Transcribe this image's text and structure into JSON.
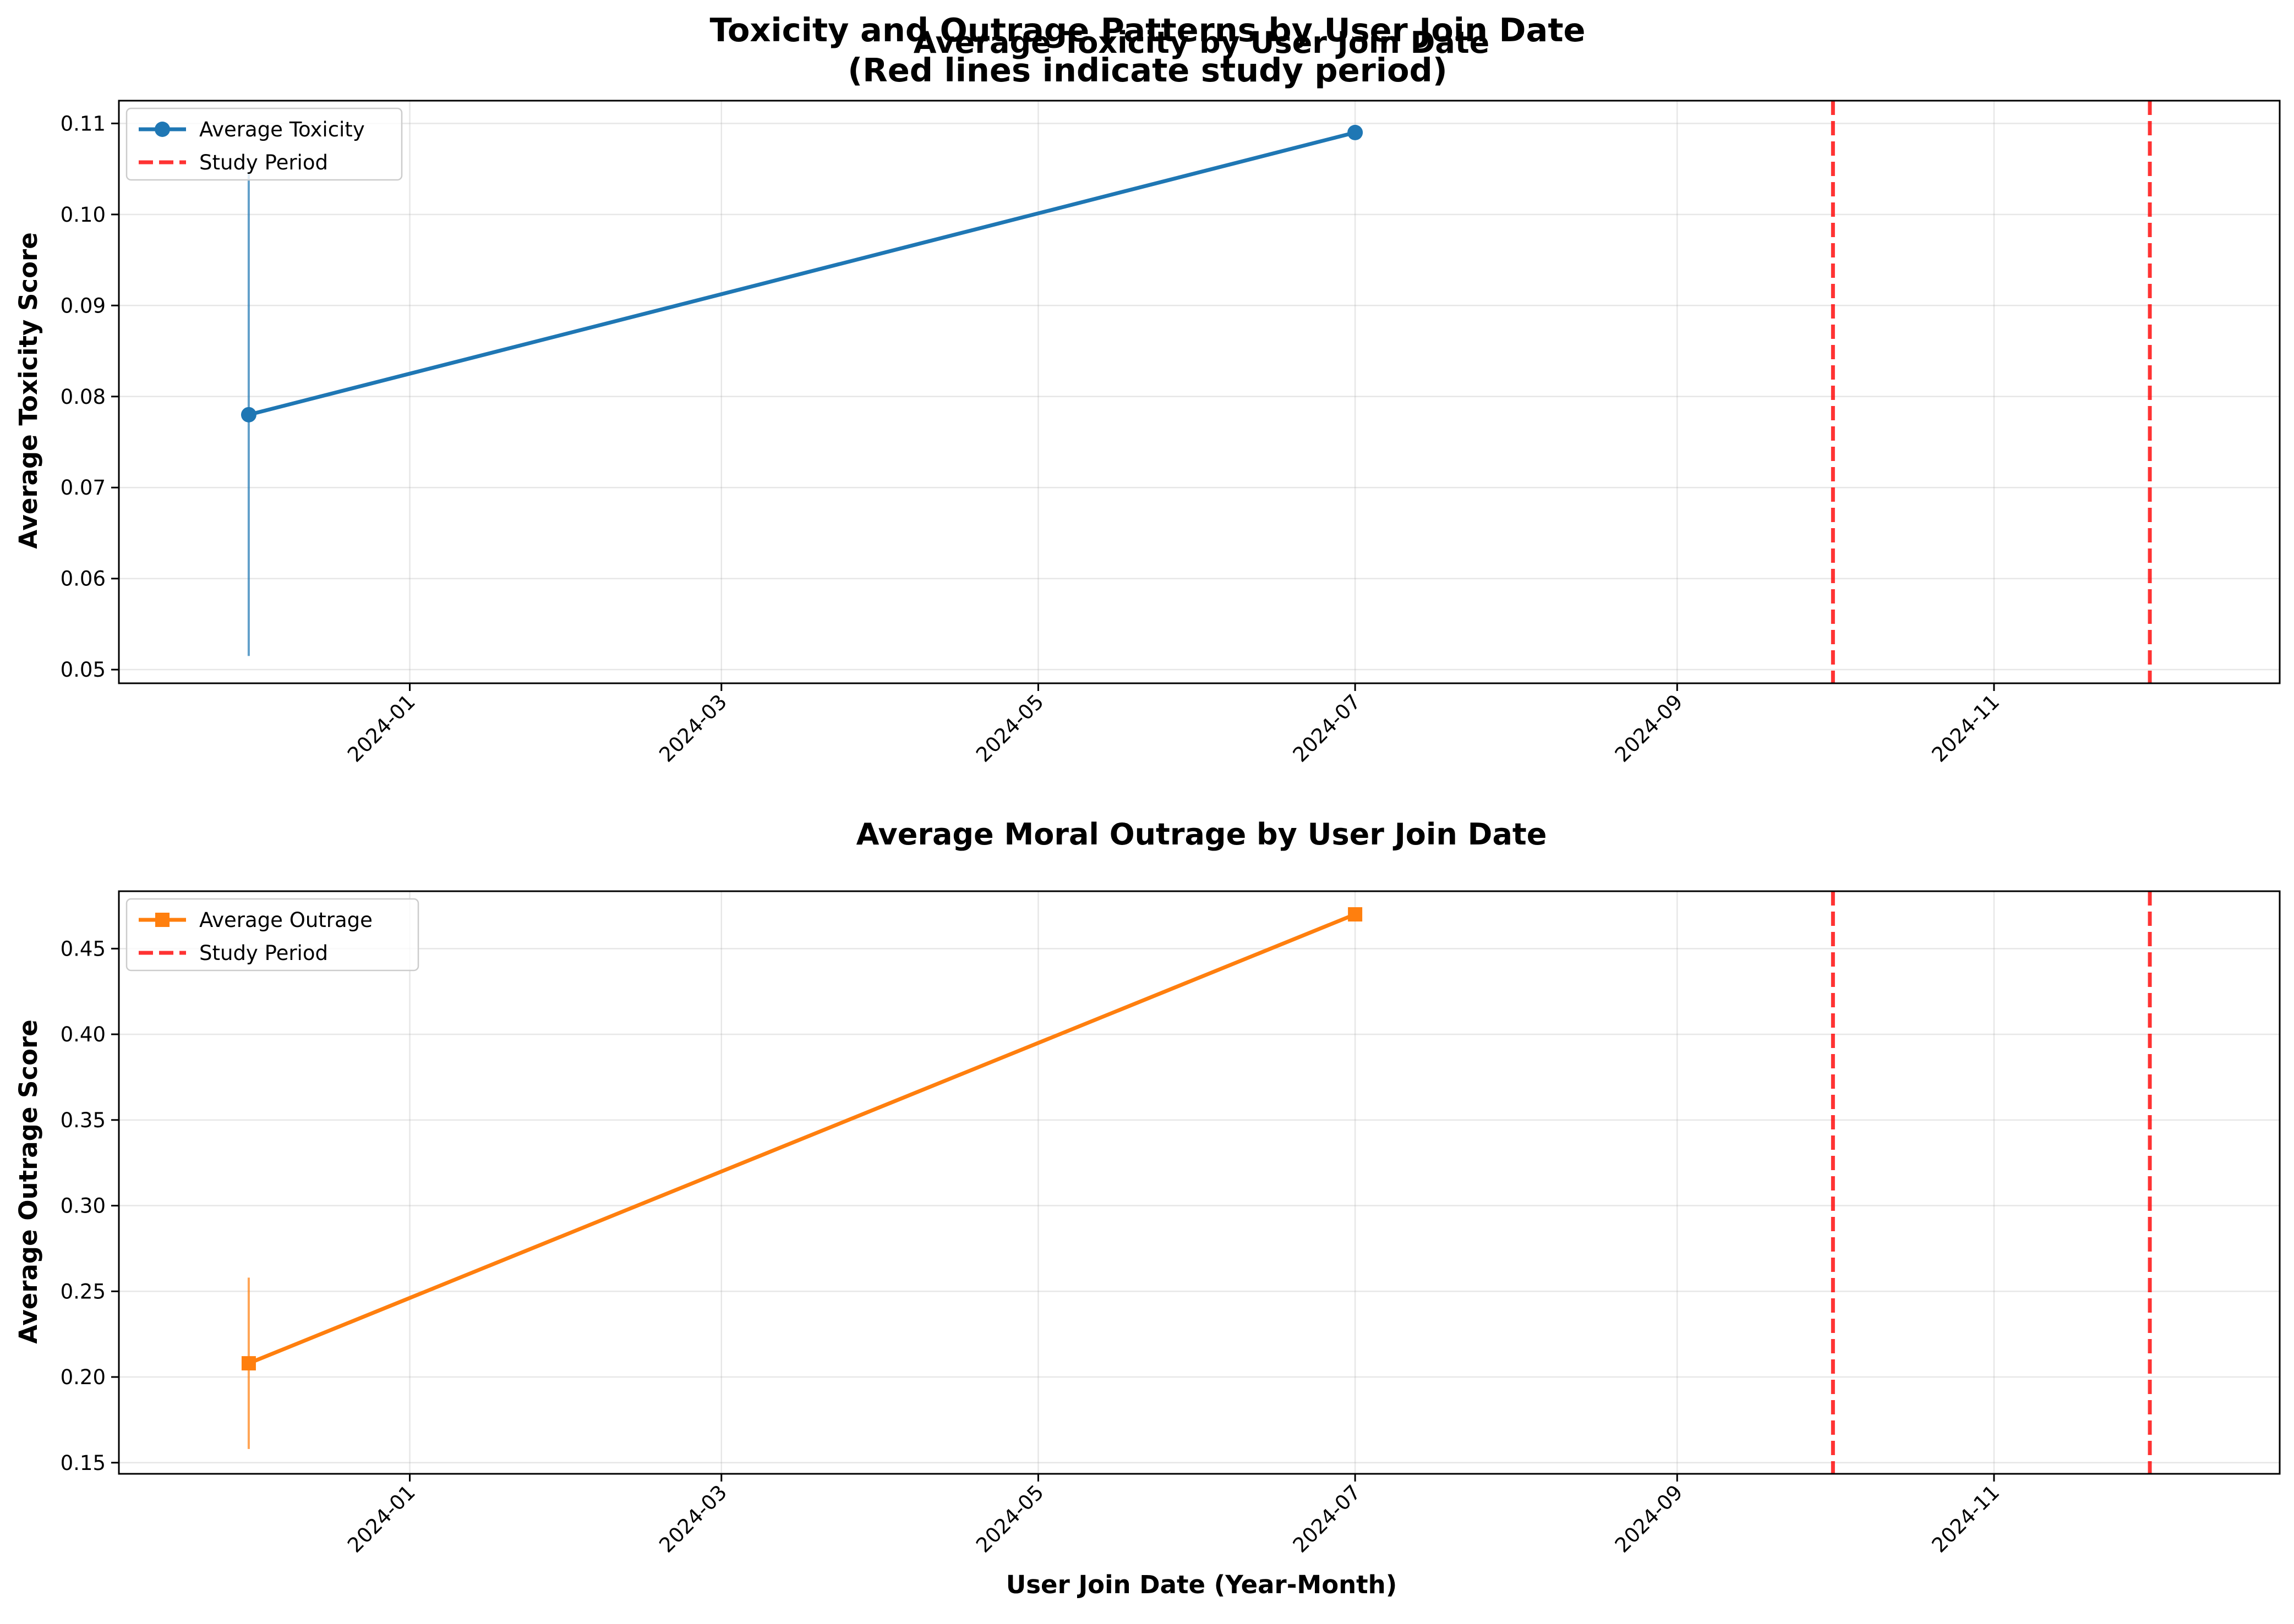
{
  "figure": {
    "title_line1": "Toxicity and Outrage Patterns by User Join Date",
    "title_line2": "(Red lines indicate study period)",
    "xlabel": "User Join Date (Year-Month)"
  },
  "chart_data": [
    {
      "type": "line",
      "title": "Average Toxicity by User Join Date",
      "ylabel": "Average Toxicity Score",
      "xlabel": "",
      "x_ticks": [
        "2024-01",
        "2024-03",
        "2024-05",
        "2024-07",
        "2024-09",
        "2024-11"
      ],
      "y_ticks": [
        "0.05",
        "0.06",
        "0.07",
        "0.08",
        "0.09",
        "0.10",
        "0.11"
      ],
      "xlim": [
        "2023-11-06",
        "2024-12-26"
      ],
      "ylim": [
        0.0485,
        0.1125
      ],
      "grid": true,
      "legend_position": "upper left",
      "series": [
        {
          "name": "Average Toxicity",
          "color": "#1f77b4",
          "marker": "circle",
          "x": [
            "2023-12-01",
            "2024-07-01"
          ],
          "y": [
            0.078,
            0.109
          ],
          "error_low": [
            0.0515,
            null
          ],
          "error_high": [
            0.1045,
            null
          ]
        }
      ],
      "reference_lines": {
        "name": "Study Period",
        "color": "#ff0000",
        "style": "dashed",
        "x": [
          "2024-10-01",
          "2024-12-01"
        ]
      }
    },
    {
      "type": "line",
      "title": "Average Moral Outrage by User Join Date",
      "ylabel": "Average Outrage Score",
      "xlabel": "User Join Date (Year-Month)",
      "x_ticks": [
        "2024-01",
        "2024-03",
        "2024-05",
        "2024-07",
        "2024-09",
        "2024-11"
      ],
      "y_ticks": [
        "0.15",
        "0.20",
        "0.25",
        "0.30",
        "0.35",
        "0.40",
        "0.45"
      ],
      "xlim": [
        "2023-11-06",
        "2024-12-26"
      ],
      "ylim": [
        0.1435,
        0.4835
      ],
      "grid": true,
      "legend_position": "upper left",
      "series": [
        {
          "name": "Average Outrage",
          "color": "#ff7f0e",
          "marker": "square",
          "x": [
            "2023-12-01",
            "2024-07-01"
          ],
          "y": [
            0.208,
            0.47
          ],
          "error_low": [
            0.158,
            null
          ],
          "error_high": [
            0.258,
            null
          ]
        }
      ],
      "reference_lines": {
        "name": "Study Period",
        "color": "#ff0000",
        "style": "dashed",
        "x": [
          "2024-10-01",
          "2024-12-01"
        ]
      }
    }
  ]
}
